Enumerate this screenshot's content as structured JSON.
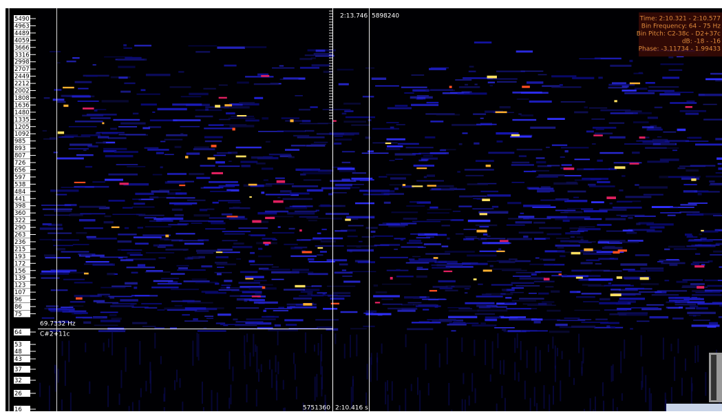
{
  "frequency_scale": {
    "labels": [
      "5490",
      "4963",
      "4489",
      "4059",
      "3666",
      "3316",
      "2998",
      "2707",
      "2449",
      "2212",
      "2002",
      "1808",
      "1636",
      "1480",
      "1335",
      "1205",
      "1092",
      "985",
      "893",
      "807",
      "726",
      "656",
      "597",
      "538",
      "484",
      "441",
      "398",
      "360",
      "322",
      "290",
      "263",
      "236",
      "215",
      "193",
      "172",
      "156",
      "139",
      "123",
      "107",
      "96",
      "86",
      "75",
      "64",
      "53",
      "48",
      "43",
      "37",
      "32",
      "26",
      "16"
    ]
  },
  "cursor": {
    "time": "2:13.746",
    "frame": "5898240",
    "frequency": "69.7332 Hz",
    "pitch": "C#2+11c",
    "bottom_frame": "5751360",
    "bottom_time": "2:10.416 s"
  },
  "info": {
    "lines": [
      "Time: 2:10.321 - 2:10.577",
      "Bin Frequency: 64 - 75 Hz",
      "Bin Pitch: C2-38c - D2+37c",
      "dB: -18 - -16",
      "Phase: -3.11734 - 1.99433"
    ]
  }
}
